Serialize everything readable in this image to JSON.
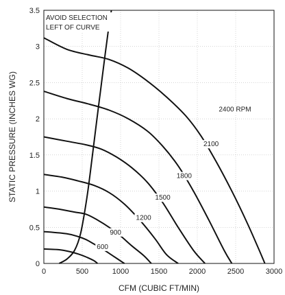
{
  "chart_data": {
    "type": "line",
    "xlabel": "CFM (CUBIC FT/MIN)",
    "ylabel": "STATIC PRESSURE (INCHES WG)",
    "xlim": [
      0,
      3000
    ],
    "ylim": [
      0,
      3.5
    ],
    "x_ticks": [
      "0",
      "500",
      "1000",
      "1500",
      "2000",
      "2500",
      "3000"
    ],
    "y_ticks": [
      "0",
      "0.5",
      "1",
      "1.5",
      "2",
      "2.5",
      "3",
      "3.5"
    ],
    "grid": true,
    "annotation": {
      "lines": [
        "AVOID SELECTION",
        "LEFT OF CURVE"
      ]
    },
    "series": [
      {
        "name": "600",
        "points": [
          [
            0,
            0.2
          ],
          [
            200,
            0.19
          ],
          [
            350,
            0.16
          ],
          [
            450,
            0.13
          ],
          [
            550,
            0.09
          ],
          [
            650,
            0.04
          ],
          [
            700,
            0
          ]
        ],
        "label_at": [
          690,
          0.2
        ]
      },
      {
        "name": "900",
        "points": [
          [
            0,
            0.44
          ],
          [
            300,
            0.41
          ],
          [
            450,
            0.37
          ],
          [
            550,
            0.33
          ],
          [
            650,
            0.27
          ],
          [
            750,
            0.21
          ],
          [
            850,
            0.14
          ],
          [
            950,
            0.07
          ],
          [
            1050,
            0
          ]
        ],
        "label_at": [
          860,
          0.4
        ]
      },
      {
        "name": "1200",
        "points": [
          [
            0,
            0.78
          ],
          [
            200,
            0.75
          ],
          [
            400,
            0.71
          ],
          [
            550,
            0.68
          ],
          [
            700,
            0.6
          ],
          [
            850,
            0.5
          ],
          [
            1000,
            0.38
          ],
          [
            1150,
            0.24
          ],
          [
            1300,
            0.11
          ],
          [
            1400,
            0
          ]
        ],
        "label_at": [
          1200,
          0.6
        ]
      },
      {
        "name": "1500",
        "points": [
          [
            0,
            1.23
          ],
          [
            250,
            1.19
          ],
          [
            450,
            1.14
          ],
          [
            650,
            1.08
          ],
          [
            850,
            0.98
          ],
          [
            1050,
            0.82
          ],
          [
            1250,
            0.6
          ],
          [
            1450,
            0.34
          ],
          [
            1600,
            0.12
          ],
          [
            1750,
            0
          ]
        ],
        "label_at": [
          1450,
          0.88
        ]
      },
      {
        "name": "1800",
        "points": [
          [
            0,
            1.75
          ],
          [
            300,
            1.69
          ],
          [
            550,
            1.64
          ],
          [
            750,
            1.58
          ],
          [
            950,
            1.47
          ],
          [
            1150,
            1.32
          ],
          [
            1350,
            1.12
          ],
          [
            1550,
            0.84
          ],
          [
            1750,
            0.5
          ],
          [
            1950,
            0.18
          ],
          [
            2100,
            0
          ]
        ],
        "label_at": [
          1730,
          1.18
        ]
      },
      {
        "name": "2100",
        "points": [
          [
            0,
            2.38
          ],
          [
            300,
            2.28
          ],
          [
            600,
            2.2
          ],
          [
            850,
            2.12
          ],
          [
            1100,
            2.0
          ],
          [
            1350,
            1.83
          ],
          [
            1550,
            1.62
          ],
          [
            1750,
            1.35
          ],
          [
            1950,
            1.0
          ],
          [
            2150,
            0.6
          ],
          [
            2350,
            0.18
          ],
          [
            2450,
            0
          ]
        ],
        "label_at": [
          2080,
          1.62
        ]
      },
      {
        "name": "2400 RPM",
        "points": [
          [
            0,
            3.12
          ],
          [
            300,
            2.96
          ],
          [
            600,
            2.88
          ],
          [
            850,
            2.82
          ],
          [
            1100,
            2.7
          ],
          [
            1350,
            2.52
          ],
          [
            1600,
            2.3
          ],
          [
            1850,
            2.04
          ],
          [
            2050,
            1.76
          ],
          [
            2250,
            1.4
          ],
          [
            2450,
            1.0
          ],
          [
            2650,
            0.56
          ],
          [
            2800,
            0.2
          ],
          [
            2880,
            0
          ]
        ],
        "label_at": [
          2280,
          2.1
        ]
      },
      {
        "name": "",
        "points": [
          [
            200,
            0
          ],
          [
            300,
            0.06
          ],
          [
            400,
            0.18
          ],
          [
            480,
            0.42
          ],
          [
            560,
            0.9
          ],
          [
            620,
            1.38
          ],
          [
            680,
            1.9
          ],
          [
            740,
            2.4
          ],
          [
            800,
            2.9
          ],
          [
            850,
            3.3
          ],
          [
            880,
            3.5
          ]
        ]
      }
    ]
  }
}
